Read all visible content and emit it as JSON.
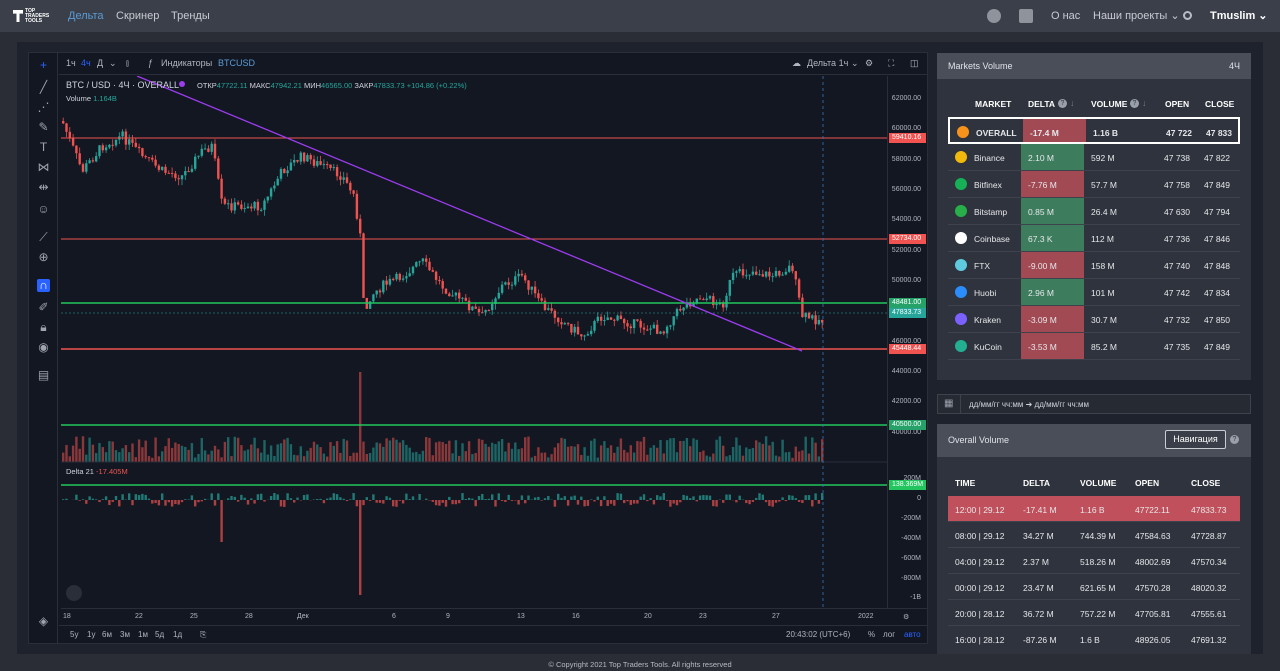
{
  "topbar": {
    "logo_text": "TOP TRADERS TOOLS",
    "nav": [
      {
        "label": "Дельта",
        "active": true
      },
      {
        "label": "Скринер"
      },
      {
        "label": "Тренды"
      }
    ],
    "about": "О нас",
    "projects": "Наши проекты",
    "user": "Tmuslim"
  },
  "toolbar": {
    "intervals": [
      "1ч",
      "4ч",
      "Д"
    ],
    "indicators": "Индикаторы",
    "symbol": "BTCUSD",
    "delta_interval": "Дельта 1ч"
  },
  "legend": {
    "title": "BTC / USD · 4Ч · OVERALL",
    "open_label": "ОТКР",
    "open": "47722.11",
    "high_label": "МАКС",
    "high": "47942.21",
    "low_label": "МИН",
    "low": "46565.00",
    "close_label": "ЗАКР",
    "close": "47833.73",
    "change": "+104.86 (+0.22%)",
    "volume_label": "Volume",
    "volume": "1.164B",
    "delta_label": "Delta 21",
    "delta": "-17.405M"
  },
  "price_scale": [
    "62000.00",
    "60000.00",
    "58000.00",
    "56000.00",
    "54000.00",
    "52000.00",
    "50000.00",
    "48000.00",
    "46000.00",
    "44000.00",
    "42000.00",
    "40000.00"
  ],
  "price_tags": [
    {
      "value": "59410.16",
      "color": "#f05350"
    },
    {
      "value": "52734.00",
      "color": "#f05350"
    },
    {
      "value": "48481.00",
      "color": "#26a269"
    },
    {
      "value": "47833.73",
      "color": "#26a69a"
    },
    {
      "value": "45448.44",
      "color": "#f05350"
    },
    {
      "value": "40500.00",
      "color": "#26a269"
    }
  ],
  "delta_scale": [
    "200M",
    "0",
    "-200M",
    "-400M",
    "-600M",
    "-800M",
    "-1B"
  ],
  "delta_tag": "138.369M",
  "time_scale": [
    "18",
    "22",
    "25",
    "28",
    "Дек",
    "6",
    "9",
    "13",
    "16",
    "20",
    "23",
    "27",
    "2022"
  ],
  "bottombar": {
    "ranges": [
      "5y",
      "1y",
      "6м",
      "3м",
      "1м",
      "5д",
      "1д"
    ],
    "clock": "20:43:02 (UTC+6)",
    "pct": "%",
    "log": "лог",
    "auto": "авто"
  },
  "markets": {
    "title": "Markets Volume",
    "interval": "4Ч",
    "headers": {
      "market": "MARKET",
      "delta": "DELTA",
      "volume": "VOLUME",
      "open": "OPEN",
      "close": "CLOSE"
    },
    "rows": [
      {
        "market": "OVERALL",
        "delta": "-17.4 M",
        "volume": "1.16 B",
        "open": "47 722",
        "close": "47 833",
        "positive": false,
        "icon_color": "#f7931a",
        "icon": "bitcoin-icon"
      },
      {
        "market": "Binance",
        "delta": "2.10 M",
        "volume": "592 M",
        "open": "47 738",
        "close": "47 822",
        "positive": true,
        "icon_color": "#f0b90b",
        "icon": "binance-icon"
      },
      {
        "market": "Bitfinex",
        "delta": "-7.76 M",
        "volume": "57.7 M",
        "open": "47 758",
        "close": "47 849",
        "positive": false,
        "icon_color": "#16b157",
        "icon": "bitfinex-icon"
      },
      {
        "market": "Bitstamp",
        "delta": "0.85 M",
        "volume": "26.4 M",
        "open": "47 630",
        "close": "47 794",
        "positive": true,
        "icon_color": "#27b04a",
        "icon": "bitstamp-icon"
      },
      {
        "market": "Coinbase",
        "delta": "67.3 K",
        "volume": "112 M",
        "open": "47 736",
        "close": "47 846",
        "positive": true,
        "icon_color": "#ffffff",
        "icon": "coinbase-icon"
      },
      {
        "market": "FTX",
        "delta": "-9.00 M",
        "volume": "158 M",
        "open": "47 740",
        "close": "47 848",
        "positive": false,
        "icon_color": "#5fcade",
        "icon": "ftx-icon"
      },
      {
        "market": "Huobi",
        "delta": "2.96 M",
        "volume": "101 M",
        "open": "47 742",
        "close": "47 834",
        "positive": true,
        "icon_color": "#2a8dfb",
        "icon": "huobi-icon"
      },
      {
        "market": "Kraken",
        "delta": "-3.09 M",
        "volume": "30.7 M",
        "open": "47 732",
        "close": "47 850",
        "positive": false,
        "icon_color": "#7b61ff",
        "icon": "kraken-icon"
      },
      {
        "market": "KuCoin",
        "delta": "-3.53 M",
        "volume": "85.2 M",
        "open": "47 735",
        "close": "47 849",
        "positive": false,
        "icon_color": "#23af91",
        "icon": "kucoin-icon"
      }
    ]
  },
  "date_range_placeholder": "дд/мм/гг чч:мм ➔ дд/мм/гг чч:мм",
  "overall": {
    "title": "Overall Volume",
    "nav_button": "Навигация",
    "headers": {
      "time": "TIME",
      "delta": "DELTA",
      "volume": "VOLUME",
      "open": "OPEN",
      "close": "CLOSE"
    },
    "rows": [
      {
        "time": "12:00 | 29.12",
        "delta": "-17.41 M",
        "volume": "1.16 B",
        "open": "47722.11",
        "close": "47833.73",
        "selected": true
      },
      {
        "time": "08:00 | 29.12",
        "delta": "34.27 M",
        "volume": "744.39 M",
        "open": "47584.63",
        "close": "47728.87"
      },
      {
        "time": "04:00 | 29.12",
        "delta": "2.37 M",
        "volume": "518.26 M",
        "open": "48002.69",
        "close": "47570.34"
      },
      {
        "time": "00:00 | 29.12",
        "delta": "23.47 M",
        "volume": "621.65 M",
        "open": "47570.28",
        "close": "48020.32"
      },
      {
        "time": "20:00 | 28.12",
        "delta": "36.72 M",
        "volume": "757.22 M",
        "open": "47705.81",
        "close": "47555.61"
      },
      {
        "time": "16:00 | 28.12",
        "delta": "-87.26 M",
        "volume": "1.6 B",
        "open": "48926.05",
        "close": "47691.32"
      }
    ]
  },
  "footer": "© Copyright 2021 Top Traders Tools. All rights reserved",
  "colors": {
    "up": "#26a69a",
    "down": "#ef5350",
    "delta_pos": "#3d7d5e",
    "delta_neg": "#a24a54",
    "trend": "#9c3cf0"
  }
}
